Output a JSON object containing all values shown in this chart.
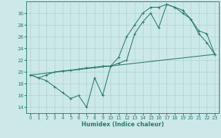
{
  "xlabel": "Humidex (Indice chaleur)",
  "background_color": "#cce8e8",
  "grid_color": "#b0d0d0",
  "line_color": "#2a7a6a",
  "xlim": [
    -0.5,
    23.5
  ],
  "ylim": [
    13,
    32
  ],
  "yticks": [
    14,
    16,
    18,
    20,
    22,
    24,
    26,
    28,
    30
  ],
  "xticks": [
    0,
    1,
    2,
    3,
    4,
    5,
    6,
    7,
    8,
    9,
    10,
    11,
    12,
    13,
    14,
    15,
    16,
    17,
    18,
    19,
    20,
    21,
    22,
    23
  ],
  "line1_x": [
    0,
    1,
    2,
    3,
    4,
    5,
    6,
    7,
    8,
    9,
    10,
    11,
    12,
    13,
    14,
    15,
    16,
    17,
    18,
    19,
    20,
    21,
    22,
    23
  ],
  "line1_y": [
    19.5,
    19.0,
    18.5,
    17.5,
    16.5,
    15.5,
    16.0,
    14.0,
    19.0,
    16.0,
    21.0,
    22.5,
    26.0,
    28.0,
    30.0,
    31.0,
    31.0,
    31.5,
    31.0,
    30.5,
    29.0,
    26.5,
    25.0,
    23.0
  ],
  "line2_x": [
    0,
    1,
    2,
    3,
    4,
    5,
    6,
    7,
    8,
    9,
    10,
    11,
    12,
    13,
    14,
    15,
    16,
    17,
    18,
    19,
    20,
    21,
    22,
    23
  ],
  "line2_y": [
    19.5,
    19.0,
    19.5,
    20.0,
    20.2,
    20.3,
    20.5,
    20.7,
    20.8,
    21.0,
    21.0,
    21.5,
    22.0,
    26.5,
    28.5,
    30.0,
    27.5,
    31.5,
    31.0,
    30.0,
    29.0,
    27.0,
    26.5,
    23.0
  ],
  "line3_x": [
    0,
    23
  ],
  "line3_y": [
    19.5,
    23.0
  ]
}
